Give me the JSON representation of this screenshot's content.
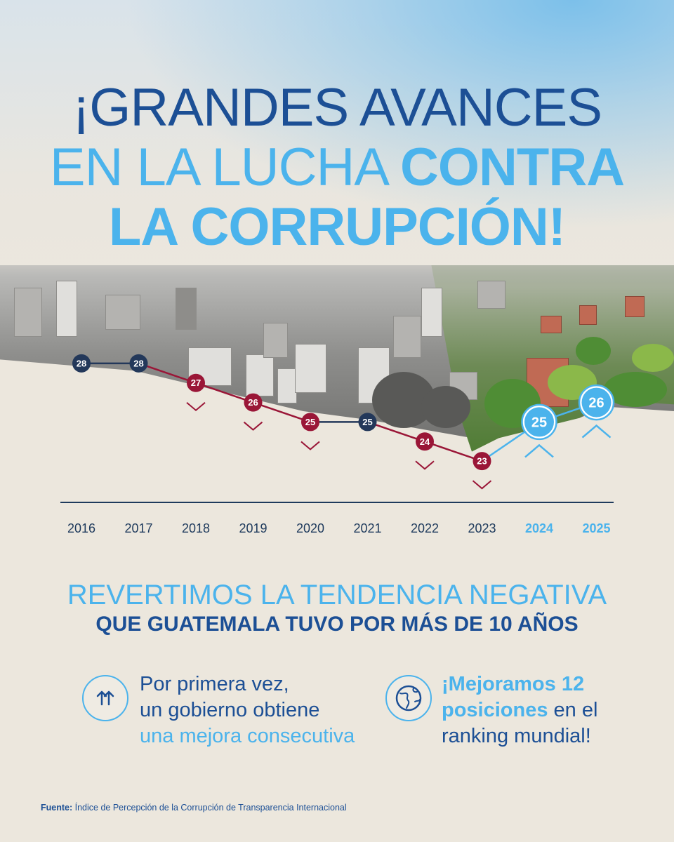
{
  "title": {
    "line1": "¡GRANDES AVANCES",
    "line2_regular": "EN LA LUCHA",
    "line2_bold": "CONTRA",
    "line3": "LA CORRUPCIÓN!"
  },
  "chart_data": {
    "type": "line",
    "title": "",
    "xlabel": "",
    "ylabel": "",
    "categories": [
      "2016",
      "2017",
      "2018",
      "2019",
      "2020",
      "2021",
      "2022",
      "2023",
      "2024",
      "2025"
    ],
    "values": [
      28,
      28,
      27,
      26,
      25,
      25,
      24,
      23,
      25,
      26
    ],
    "point_status": [
      "equal",
      "equal",
      "down",
      "down",
      "down",
      "equal",
      "down",
      "down",
      "up",
      "up"
    ],
    "highlight_years": [
      "2024",
      "2025"
    ],
    "ylim": [
      22,
      29
    ],
    "grid": false,
    "colors": {
      "equal": "#23385a",
      "down": "#9a1637",
      "up": "#4bb3ec",
      "axis": "#1e3a5c",
      "year_text": "#1e3a5c",
      "year_highlight": "#4bb3ec"
    }
  },
  "subtitle": {
    "line1": "REVERTIMOS LA TENDENCIA NEGATIVA",
    "line2": "QUE GUATEMALA TUVO POR MÁS DE 10 AÑOS"
  },
  "feature1": {
    "icon": "arrows-up-icon",
    "line1": "Por primera vez,",
    "line2": "un gobierno obtiene",
    "line3": "una mejora consecutiva"
  },
  "feature2": {
    "icon": "globe-icon",
    "line1": "¡Mejoramos 12",
    "line2_bold": "posiciones",
    "line2_rest": " en el",
    "line3": "ranking mundial!"
  },
  "source": {
    "label": "Fuente:",
    "text": " Índice de Percepción de la Corrupción de Transparencia Internacional"
  }
}
